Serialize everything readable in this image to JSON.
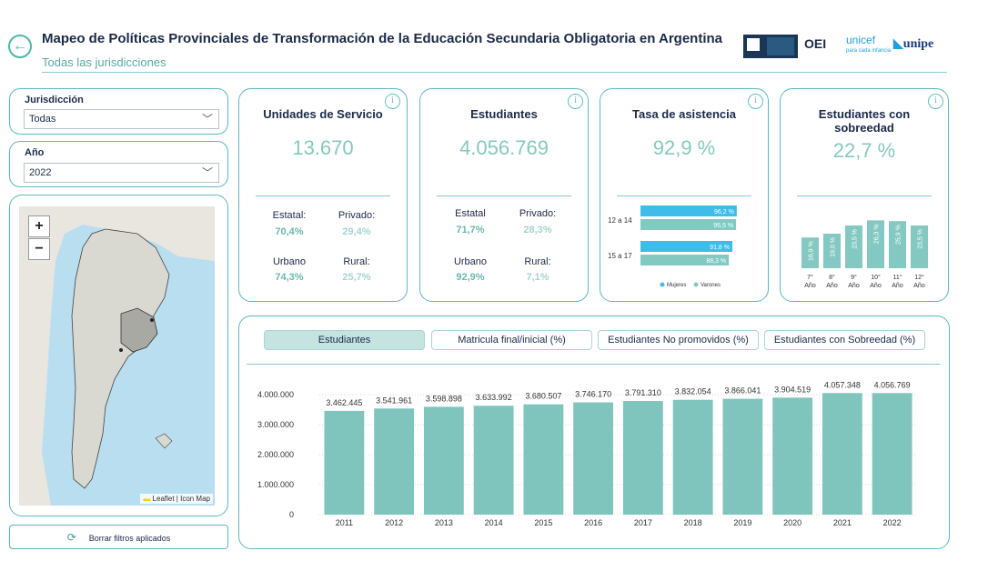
{
  "header": {
    "title": "Mapeo de Políticas Provinciales de Transformación de la Educación Secundaria Obligatoria en Argentina",
    "subtitle": "Todas las jurisdicciones",
    "logos": [
      "OEI",
      "unicef",
      "para cada infancia",
      "unipe"
    ]
  },
  "filters": {
    "jurisdiccion_label": "Jurisdicción",
    "jurisdiccion_value": "Todas",
    "anio_label": "Año",
    "anio_value": "2022",
    "clear_label": "Borrar filtros aplicados"
  },
  "map": {
    "zoom_in": "+",
    "zoom_out": "−",
    "attribution": "Leaflet | Icon Map"
  },
  "kpis": {
    "unidades": {
      "title": "Unidades de Servicio",
      "value": "13.670",
      "estatal_label": "Estatal:",
      "estatal_value": "70,4%",
      "privado_label": "Privado:",
      "privado_value": "29,4%",
      "urbano_label": "Urbano",
      "urbano_value": "74,3%",
      "rural_label": "Rural:",
      "rural_value": "25,7%"
    },
    "estudiantes": {
      "title": "Estudiantes",
      "value": "4.056.769",
      "estatal_label": "Estatal",
      "estatal_value": "71,7%",
      "privado_label": "Privado:",
      "privado_value": "28,3%",
      "urbano_label": "Urbano",
      "urbano_value": "92,9%",
      "rural_label": "Rural:",
      "rural_value": "7,1%"
    },
    "asistencia": {
      "title": "Tasa de asistencia",
      "value": "92,9 %",
      "groups": [
        {
          "label": "12 a 14",
          "mujeres": 96.2,
          "varones": 95.5,
          "mujeres_txt": "96,2 %",
          "varones_txt": "95,5 %"
        },
        {
          "label": "15 a 17",
          "mujeres": 91.8,
          "varones": 88.3,
          "mujeres_txt": "91,8 %",
          "varones_txt": "88,3 %"
        }
      ],
      "legend_mujeres": "Mujeres",
      "legend_varones": "Varones",
      "colors": {
        "mujeres": "#3dbde8",
        "varones": "#84c9c1"
      }
    },
    "sobreedad": {
      "title": "Estudiantes con sobreedad",
      "value": "22,7 %",
      "bars": [
        {
          "label": "7°",
          "sub": "Año",
          "value": 16.9,
          "txt": "16,9 %"
        },
        {
          "label": "8°",
          "sub": "Año",
          "value": 19.0,
          "txt": "19,0 %"
        },
        {
          "label": "9°",
          "sub": "Año",
          "value": 23.5,
          "txt": "23,5 %"
        },
        {
          "label": "10°",
          "sub": "Año",
          "value": 26.3,
          "txt": "26,3 %"
        },
        {
          "label": "11°",
          "sub": "Año",
          "value": 25.9,
          "txt": "25,9 %"
        },
        {
          "label": "12°",
          "sub": "Año",
          "value": 23.5,
          "txt": "23,5 %"
        }
      ]
    }
  },
  "tabs": [
    {
      "label": "Estudiantes",
      "active": true
    },
    {
      "label": "Matricula final/inicial (%)",
      "active": false
    },
    {
      "label": "Estudiantes No promovidos (%)",
      "active": false
    },
    {
      "label": "Estudiantes con Sobreedad (%)",
      "active": false
    }
  ],
  "chart_data": {
    "type": "bar",
    "categories": [
      "2011",
      "2012",
      "2013",
      "2014",
      "2015",
      "2016",
      "2017",
      "2018",
      "2019",
      "2020",
      "2021",
      "2022"
    ],
    "values": [
      3462445,
      3541961,
      3598898,
      3633992,
      3680507,
      3746170,
      3791310,
      3832054,
      3866041,
      3904519,
      4057348,
      4056769
    ],
    "labels": [
      "3.462.445",
      "3.541.961",
      "3.598.898",
      "3.633.992",
      "3.680.507",
      "3.746.170",
      "3.791.310",
      "3.832.054",
      "3.866.041",
      "3.904.519",
      "4.057.348",
      "4.056.769"
    ],
    "yticks": [
      0,
      1000000,
      2000000,
      3000000,
      4000000
    ],
    "ytick_labels": [
      "0",
      "1.000.000",
      "2.000.000",
      "3.000.000",
      "4.000.000"
    ],
    "ylim": [
      0,
      4400000
    ],
    "color": "#7fc4bd",
    "title": "",
    "xlabel": "",
    "ylabel": ""
  }
}
